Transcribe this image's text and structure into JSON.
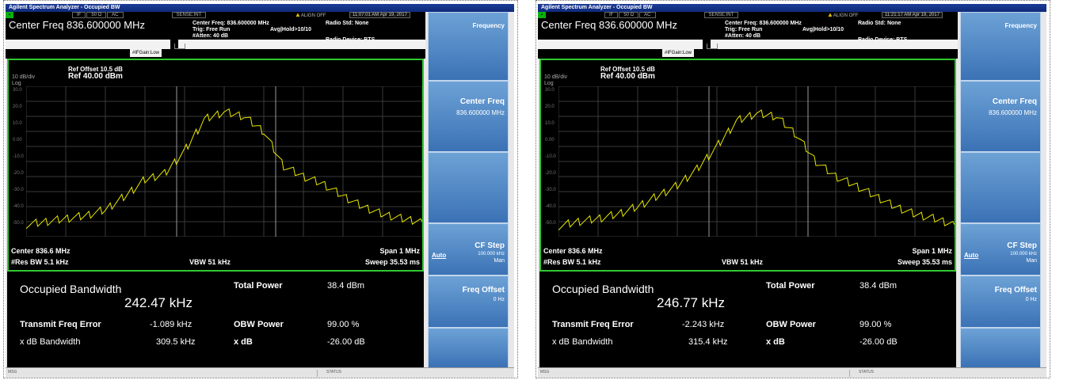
{
  "panels": [
    {
      "window_title": "Agilent Spectrum Analyzer - Occupied BW",
      "status_cells": [
        "IF",
        "50 Ω",
        "AC",
        "SENSE:INT"
      ],
      "align": "ALIGN OFF",
      "timestamp": "11:07:01 AM Apr 19, 2017",
      "center_freq": "Center Freq 836.600000 MHz",
      "center_freq_small": "Center Freq: 836.600000 MHz",
      "trig": "Trig: Free Run",
      "avg_hold": "Avg|Hold>10/10",
      "atten": "#Atten: 40 dB",
      "ifgain": "#IFGain:Low",
      "radio_std": "Radio Std: None",
      "radio_device": "Radio Device: BTS",
      "ref_offset": "Ref Offset 10.5 dB",
      "ref_level": "Ref 40.00 dBm",
      "scale": "10 dB/div",
      "log": "Log",
      "y_ticks": [
        "30.0",
        "20.0",
        "10.0",
        "0.00",
        "-10.0",
        "-20.0",
        "-30.0",
        "-40.0",
        "-50.0"
      ],
      "center": "Center  836.6 MHz",
      "span": "Span 1 MHz",
      "res_bw": "#Res BW  5.1 kHz",
      "vbw": "VBW  51 kHz",
      "sweep": "Sweep  35.53 ms",
      "occupied_bw_label": "Occupied Bandwidth",
      "occupied_bw_value": "242.47 kHz",
      "total_power_label": "Total Power",
      "total_power_value": "38.4 dBm",
      "tx_freq_error_label": "Transmit Freq Error",
      "tx_freq_error_value": "-1.089 kHz",
      "obw_power_label": "OBW Power",
      "obw_power_value": "99.00 %",
      "xdb_bw_label": "x dB Bandwidth",
      "xdb_bw_value": "309.5 kHz",
      "xdb_label": "x dB",
      "xdb_value": "-26.00 dB",
      "msg": "MSG",
      "status": "STATUS",
      "softkeys": {
        "frequency": "Frequency",
        "center_freq": "Center Freq",
        "center_freq_value": "836.600000 MHz",
        "cf_step": "CF Step",
        "cf_step_value": "100.000 kHz",
        "cf_step_mode": "Man",
        "auto": "Auto",
        "freq_offset": "Freq Offset",
        "freq_offset_value": "0 Hz"
      },
      "chart_data": {
        "type": "line",
        "x_unit": "MHz",
        "xlim": [
          836.1,
          837.1
        ],
        "ylim": [
          -60,
          40
        ],
        "x": [
          836.1,
          836.15,
          836.2,
          836.25,
          836.3,
          836.35,
          836.4,
          836.45,
          836.5,
          836.55,
          836.6,
          836.65,
          836.7,
          836.75,
          836.8,
          836.85,
          836.9,
          836.95,
          837.0,
          837.05,
          837.1
        ],
        "y": [
          -52,
          -50,
          -48,
          -46,
          -42,
          -33,
          -22,
          -18,
          -3,
          18,
          23,
          20,
          10,
          -13,
          -20,
          -25,
          -33,
          -40,
          -45,
          -48,
          -50
        ],
        "grid": true,
        "trace_color": "#e8e800"
      }
    },
    {
      "window_title": "Agilent Spectrum Analyzer - Occupied BW",
      "status_cells": [
        "IF",
        "50 Ω",
        "AC",
        "SENSE:INT"
      ],
      "align": "ALIGN OFF",
      "timestamp": "11:21:17 AM Apr 19, 2017",
      "center_freq": "Center Freq 836.600000 MHz",
      "center_freq_small": "Center Freq: 836.600000 MHz",
      "trig": "Trig: Free Run",
      "avg_hold": "Avg|Hold>10/10",
      "atten": "#Atten: 40 dB",
      "ifgain": "#IFGain:Low",
      "radio_std": "Radio Std: None",
      "radio_device": "Radio Device: BTS",
      "ref_offset": "Ref Offset 10.5 dB",
      "ref_level": "Ref 40.00 dBm",
      "scale": "10 dB/div",
      "log": "Log",
      "y_ticks": [
        "30.0",
        "20.0",
        "10.0",
        "0.00",
        "-10.0",
        "-20.0",
        "-30.0",
        "-40.0",
        "-50.0"
      ],
      "center": "Center  836.6 MHz",
      "span": "Span 1 MHz",
      "res_bw": "#Res BW  5.1 kHz",
      "vbw": "VBW  51 kHz",
      "sweep": "Sweep  35.53 ms",
      "occupied_bw_label": "Occupied Bandwidth",
      "occupied_bw_value": "246.77 kHz",
      "total_power_label": "Total Power",
      "total_power_value": "38.4 dBm",
      "tx_freq_error_label": "Transmit Freq Error",
      "tx_freq_error_value": "-2.243 kHz",
      "obw_power_label": "OBW Power",
      "obw_power_value": "99.00 %",
      "xdb_bw_label": "x dB Bandwidth",
      "xdb_bw_value": "315.4 kHz",
      "xdb_label": "x dB",
      "xdb_value": "-26.00 dB",
      "msg": "MSG",
      "status": "STATUS",
      "softkeys": {
        "frequency": "Frequency",
        "center_freq": "Center Freq",
        "center_freq_value": "836.600000 MHz",
        "cf_step": "CF Step",
        "cf_step_value": "100.000 kHz",
        "cf_step_mode": "Man",
        "auto": "Auto",
        "freq_offset": "Freq Offset",
        "freq_offset_value": "0 Hz"
      },
      "chart_data": {
        "type": "line",
        "x_unit": "MHz",
        "xlim": [
          836.1,
          837.1
        ],
        "ylim": [
          -60,
          40
        ],
        "x": [
          836.1,
          836.15,
          836.2,
          836.25,
          836.3,
          836.35,
          836.4,
          836.45,
          836.5,
          836.55,
          836.6,
          836.65,
          836.7,
          836.75,
          836.8,
          836.85,
          836.9,
          836.95,
          837.0,
          837.05,
          837.1
        ],
        "y": [
          -53,
          -50,
          -48,
          -45,
          -40,
          -33,
          -26,
          -15,
          0,
          17,
          22,
          20,
          8,
          -10,
          -20,
          -26,
          -33,
          -40,
          -45,
          -48,
          -52
        ],
        "grid": true,
        "trace_color": "#e8e800"
      }
    }
  ]
}
